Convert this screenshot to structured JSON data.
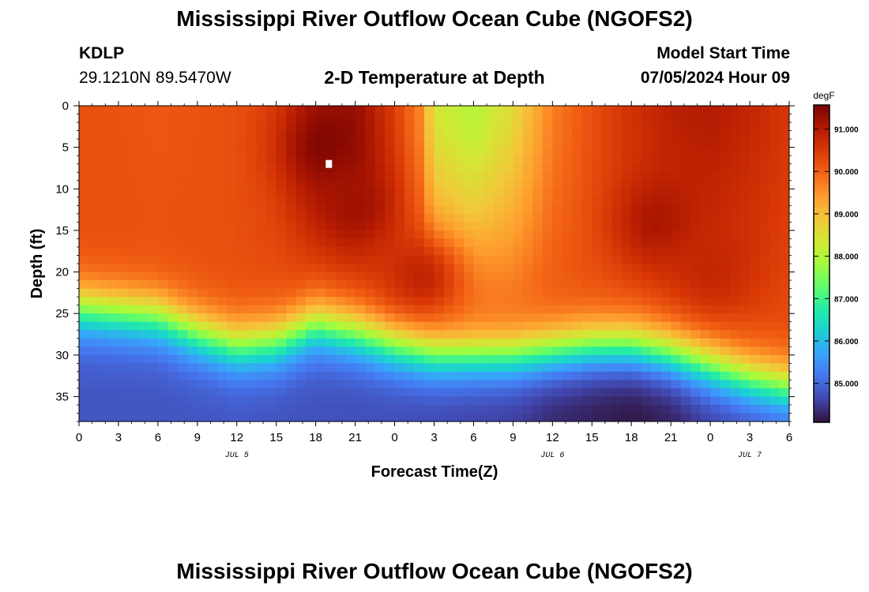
{
  "header": {
    "title": "Mississippi River Outflow Ocean Cube (NGOFS2)",
    "station_id": "KDLP",
    "coordinates": "29.1210N  89.5470W",
    "plot_title": "2-D Temperature at Depth",
    "model_label": "Model Start Time",
    "model_time": "07/05/2024 Hour 09"
  },
  "footer": {
    "title": "Mississippi River Outflow Ocean Cube (NGOFS2)"
  },
  "colors": {
    "scale": [
      "#30123b",
      "#4145ab",
      "#4675ed",
      "#39a2fc",
      "#1bcfd4",
      "#24eca6",
      "#61fc6c",
      "#a4fc3b",
      "#d1e834",
      "#f3c63a",
      "#fe9b2d",
      "#f36315",
      "#d93806",
      "#b11901",
      "#7a0403"
    ],
    "marker": "#ffffff"
  },
  "chart_data": {
    "type": "heatmap",
    "xlabel": "Forecast Time(Z)",
    "ylabel": "Depth (ft)",
    "x_unit": "hours since 07/05/2024 00Z",
    "xlim": [
      0,
      54
    ],
    "ylim": [
      0,
      38
    ],
    "x_ticks": [
      0,
      3,
      6,
      9,
      12,
      15,
      18,
      21,
      24,
      27,
      30,
      33,
      36,
      39,
      42,
      45,
      48,
      51,
      54
    ],
    "x_tick_labels": [
      "0",
      "3",
      "6",
      "9",
      "12",
      "15",
      "18",
      "21",
      "0",
      "3",
      "6",
      "9",
      "12",
      "15",
      "18",
      "21",
      "0",
      "3",
      "6"
    ],
    "y_ticks": [
      0,
      5,
      10,
      15,
      20,
      25,
      30,
      35
    ],
    "y_tick_labels": [
      "0",
      "5",
      "10",
      "15",
      "20",
      "25",
      "30",
      "35"
    ],
    "date_labels": [
      {
        "x": 12,
        "label": "JUL 5"
      },
      {
        "x": 36,
        "label": "JUL 6"
      },
      {
        "x": 51,
        "label": "JUL 7"
      }
    ],
    "colorbar": {
      "unit": "degF",
      "range": [
        84.1,
        91.55
      ],
      "ticks": [
        91,
        90,
        89,
        88,
        87,
        86,
        85
      ],
      "tick_labels": [
        "91.000",
        "90.000",
        "89.000",
        "88.000",
        "87.000",
        "86.000",
        "85.000"
      ]
    },
    "marker": {
      "x": 19,
      "depth": 7
    },
    "surface_temperature": {
      "hours": [
        0,
        6,
        12,
        15,
        18,
        21,
        24,
        26,
        27,
        30,
        33,
        36,
        39,
        42,
        45,
        48,
        51,
        54
      ],
      "values": [
        90.2,
        90.1,
        90.2,
        90.4,
        91.0,
        91.2,
        90.4,
        89.6,
        88.4,
        88.0,
        88.6,
        89.7,
        90.2,
        90.6,
        90.9,
        91.0,
        90.8,
        90.5
      ]
    },
    "warm_core": [
      {
        "hour": 18.8,
        "depth": 5,
        "value": 91.5
      },
      {
        "hour": 21,
        "depth": 12,
        "value": 91.2
      },
      {
        "hour": 26,
        "depth": 21,
        "value": 90.9
      },
      {
        "hour": 44,
        "depth": 14,
        "value": 91.1
      },
      {
        "hour": 48,
        "depth": 20,
        "value": 90.8
      }
    ],
    "thermocline_depth": {
      "hours": [
        0,
        3,
        6,
        9,
        12,
        15,
        18,
        21,
        24,
        27,
        30,
        33,
        36,
        39,
        42,
        45,
        48,
        51,
        54
      ],
      "values": [
        22,
        22.5,
        23,
        25,
        26.5,
        26,
        24,
        25,
        26.5,
        27.5,
        27.5,
        27.5,
        27,
        26.5,
        26.5,
        27.5,
        29,
        30.5,
        31.5
      ]
    },
    "bottom_temperature": {
      "hours": [
        0,
        12,
        24,
        33,
        36,
        42,
        45,
        48,
        54
      ],
      "values": [
        84.8,
        84.8,
        84.7,
        84.5,
        84.3,
        84.1,
        84.2,
        84.5,
        84.7
      ]
    }
  }
}
